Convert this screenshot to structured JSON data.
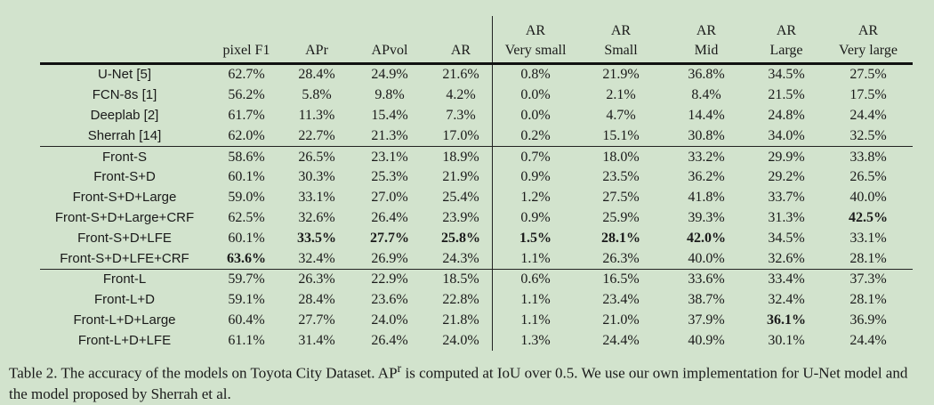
{
  "table": {
    "headers": [
      {
        "line1": "",
        "line2": ""
      },
      {
        "line1": "",
        "line2": "pixel F1"
      },
      {
        "line1": "",
        "line2": "APr"
      },
      {
        "line1": "",
        "line2": "APvol"
      },
      {
        "line1": "",
        "line2": "AR"
      },
      {
        "line1": "AR",
        "line2": "Very small"
      },
      {
        "line1": "AR",
        "line2": "Small"
      },
      {
        "line1": "AR",
        "line2": "Mid"
      },
      {
        "line1": "AR",
        "line2": "Large"
      },
      {
        "line1": "AR",
        "line2": "Very large"
      }
    ],
    "groups": [
      [
        {
          "name": "U-Net [5]",
          "values": [
            "62.7%",
            "28.4%",
            "24.9%",
            "21.6%",
            "0.8%",
            "21.9%",
            "36.8%",
            "34.5%",
            "27.5%"
          ],
          "bold": []
        },
        {
          "name": "FCN-8s [1]",
          "values": [
            "56.2%",
            "5.8%",
            "9.8%",
            "4.2%",
            "0.0%",
            "2.1%",
            "8.4%",
            "21.5%",
            "17.5%"
          ],
          "bold": []
        },
        {
          "name": "Deeplab [2]",
          "values": [
            "61.7%",
            "11.3%",
            "15.4%",
            "7.3%",
            "0.0%",
            "4.7%",
            "14.4%",
            "24.8%",
            "24.4%"
          ],
          "bold": []
        },
        {
          "name": "Sherrah [14]",
          "values": [
            "62.0%",
            "22.7%",
            "21.3%",
            "17.0%",
            "0.2%",
            "15.1%",
            "30.8%",
            "34.0%",
            "32.5%"
          ],
          "bold": []
        }
      ],
      [
        {
          "name": "Front-S",
          "values": [
            "58.6%",
            "26.5%",
            "23.1%",
            "18.9%",
            "0.7%",
            "18.0%",
            "33.2%",
            "29.9%",
            "33.8%"
          ],
          "bold": []
        },
        {
          "name": "Front-S+D",
          "values": [
            "60.1%",
            "30.3%",
            "25.3%",
            "21.9%",
            "0.9%",
            "23.5%",
            "36.2%",
            "29.2%",
            "26.5%"
          ],
          "bold": []
        },
        {
          "name": "Front-S+D+Large",
          "values": [
            "59.0%",
            "33.1%",
            "27.0%",
            "25.4%",
            "1.2%",
            "27.5%",
            "41.8%",
            "33.7%",
            "40.0%"
          ],
          "bold": []
        },
        {
          "name": "Front-S+D+Large+CRF",
          "values": [
            "62.5%",
            "32.6%",
            "26.4%",
            "23.9%",
            "0.9%",
            "25.9%",
            "39.3%",
            "31.3%",
            "42.5%"
          ],
          "bold": [
            8
          ]
        },
        {
          "name": "Front-S+D+LFE",
          "values": [
            "60.1%",
            "33.5%",
            "27.7%",
            "25.8%",
            "1.5%",
            "28.1%",
            "42.0%",
            "34.5%",
            "33.1%"
          ],
          "bold": [
            1,
            2,
            3,
            4,
            5,
            6
          ]
        },
        {
          "name": "Front-S+D+LFE+CRF",
          "values": [
            "63.6%",
            "32.4%",
            "26.9%",
            "24.3%",
            "1.1%",
            "26.3%",
            "40.0%",
            "32.6%",
            "28.1%"
          ],
          "bold": [
            0
          ]
        }
      ],
      [
        {
          "name": "Front-L",
          "values": [
            "59.7%",
            "26.3%",
            "22.9%",
            "18.5%",
            "0.6%",
            "16.5%",
            "33.6%",
            "33.4%",
            "37.3%"
          ],
          "bold": []
        },
        {
          "name": "Front-L+D",
          "values": [
            "59.1%",
            "28.4%",
            "23.6%",
            "22.8%",
            "1.1%",
            "23.4%",
            "38.7%",
            "32.4%",
            "28.1%"
          ],
          "bold": []
        },
        {
          "name": "Front-L+D+Large",
          "values": [
            "60.4%",
            "27.7%",
            "24.0%",
            "21.8%",
            "1.1%",
            "21.0%",
            "37.9%",
            "36.1%",
            "36.9%"
          ],
          "bold": [
            7
          ]
        },
        {
          "name": "Front-L+D+LFE",
          "values": [
            "61.1%",
            "31.4%",
            "26.4%",
            "24.0%",
            "1.3%",
            "24.4%",
            "40.9%",
            "30.1%",
            "24.4%"
          ],
          "bold": []
        }
      ]
    ]
  },
  "caption": {
    "text_a": "Table 2. The accuracy of the models on Toyota City Dataset. AP",
    "sup": "r",
    "text_b": " is computed at IoU over 0.5. We use our own implementation for U-Net model and the model proposed by Sherrah et al."
  }
}
